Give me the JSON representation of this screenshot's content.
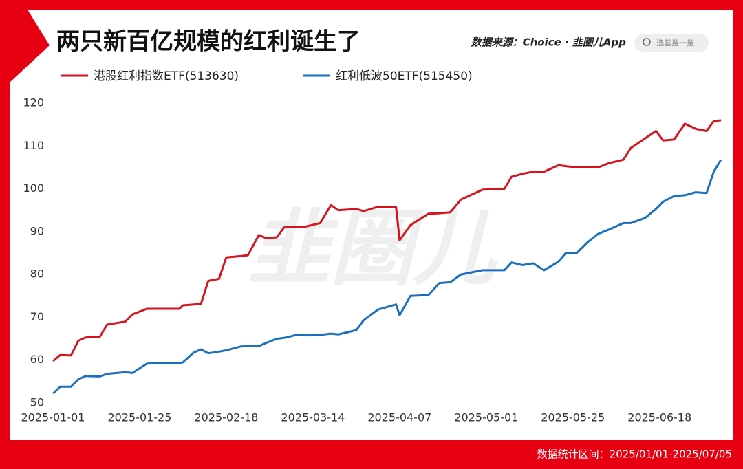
{
  "chart_data": {
    "type": "line",
    "title": "两只新百亿规模的红利诞生了",
    "source": "数据来源：Choice · 韭圈儿App",
    "search_placeholder": "选基搜一搜",
    "watermark": "韭圈儿",
    "note": "数据统计区间：2025/01/01-2025/07/05",
    "x": [
      "2025-01-01",
      "2025-01-03",
      "2025-01-06",
      "2025-01-08",
      "2025-01-10",
      "2025-01-14",
      "2025-01-16",
      "2025-01-21",
      "2025-01-23",
      "2025-01-27",
      "2025-01-31",
      "2025-02-05",
      "2025-02-06",
      "2025-02-09",
      "2025-02-11",
      "2025-02-13",
      "2025-02-16",
      "2025-02-18",
      "2025-02-22",
      "2025-02-24",
      "2025-02-27",
      "2025-03-01",
      "2025-03-04",
      "2025-03-06",
      "2025-03-10",
      "2025-03-12",
      "2025-03-16",
      "2025-03-19",
      "2025-03-21",
      "2025-03-26",
      "2025-03-28",
      "2025-04-01",
      "2025-04-06",
      "2025-04-07",
      "2025-04-10",
      "2025-04-15",
      "2025-04-18",
      "2025-04-21",
      "2025-04-24",
      "2025-04-30",
      "2025-05-06",
      "2025-05-08",
      "2025-05-11",
      "2025-05-14",
      "2025-05-17",
      "2025-05-21",
      "2025-05-23",
      "2025-05-26",
      "2025-05-29",
      "2025-06-01",
      "2025-06-04",
      "2025-06-08",
      "2025-06-10",
      "2025-06-14",
      "2025-06-17",
      "2025-06-19",
      "2025-06-22",
      "2025-06-25",
      "2025-06-28",
      "2025-07-01",
      "2025-07-03",
      "2025-07-05"
    ],
    "series": [
      {
        "name": "港股红利指数ETF(513630)",
        "color": "#d7141e",
        "values": [
          59.8,
          61.2,
          61.1,
          64.5,
          65.3,
          65.5,
          68.3,
          69.0,
          70.7,
          72.0,
          72.0,
          72.0,
          72.8,
          73.0,
          73.2,
          78.5,
          79.0,
          84.0,
          84.3,
          84.5,
          89.2,
          88.5,
          88.7,
          91.0,
          91.1,
          91.2,
          92.0,
          96.2,
          95.0,
          95.3,
          94.8,
          95.8,
          95.8,
          88.0,
          91.5,
          94.2,
          94.3,
          94.5,
          97.5,
          99.8,
          100.0,
          102.8,
          103.5,
          104.0,
          104.0,
          105.5,
          105.3,
          105.0,
          105.0,
          105.0,
          106.0,
          106.8,
          109.5,
          111.8,
          113.5,
          111.3,
          111.5,
          115.2,
          114.0,
          113.5,
          115.8,
          116.0
        ]
      },
      {
        "name": "红利低波50ETF(515450)",
        "color": "#1a6fc0",
        "values": [
          52.2,
          53.8,
          53.8,
          55.5,
          56.3,
          56.2,
          56.8,
          57.2,
          57.0,
          59.2,
          59.3,
          59.3,
          59.5,
          61.8,
          62.5,
          61.6,
          62.0,
          62.3,
          63.2,
          63.3,
          63.3,
          64.0,
          65.0,
          65.2,
          66.0,
          65.8,
          65.9,
          66.2,
          66.0,
          67.0,
          69.3,
          71.8,
          73.0,
          70.5,
          75.0,
          75.2,
          78.0,
          78.2,
          80.0,
          81.0,
          81.0,
          82.8,
          82.2,
          82.6,
          81.0,
          83.0,
          85.0,
          85.0,
          87.5,
          89.5,
          90.5,
          92.0,
          92.0,
          93.2,
          95.3,
          97.0,
          98.3,
          98.5,
          99.2,
          99.0,
          104.0,
          106.8
        ]
      }
    ],
    "xlim": [
      "2025-01-01",
      "2025-07-05"
    ],
    "xticks": [
      "2025-01-01",
      "2025-01-25",
      "2025-02-18",
      "2025-03-14",
      "2025-04-07",
      "2025-05-01",
      "2025-05-25",
      "2025-06-18"
    ],
    "ylim": [
      50,
      120
    ],
    "yticks": [
      50,
      60,
      70,
      80,
      90,
      100,
      110,
      120
    ],
    "grid": false
  }
}
